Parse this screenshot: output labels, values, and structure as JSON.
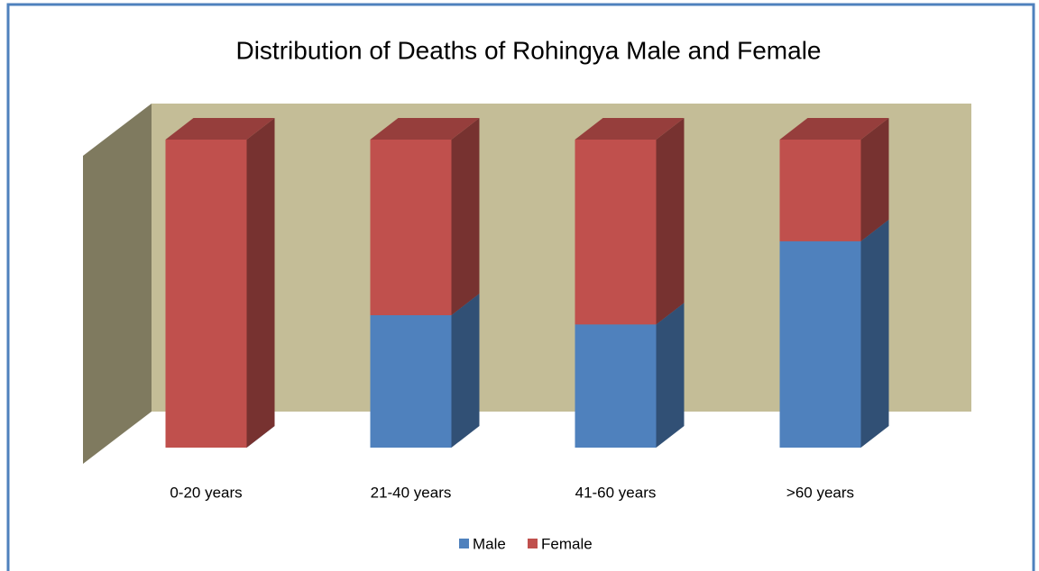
{
  "chart_data": {
    "type": "bar3d_stacked",
    "title": "Distribution of Deaths of Rohingya Male and Female",
    "categories": [
      "0-20 years",
      "21-40 years",
      "41-60 years",
      ">60 years"
    ],
    "series": [
      {
        "name": "Male",
        "color": "#4f81bd",
        "values": [
          0,
          43,
          40,
          67
        ]
      },
      {
        "name": "Female",
        "color": "#c0504d",
        "values": [
          100,
          57,
          60,
          33
        ]
      }
    ],
    "ylim": [
      0,
      100
    ],
    "legend": "bottom"
  }
}
